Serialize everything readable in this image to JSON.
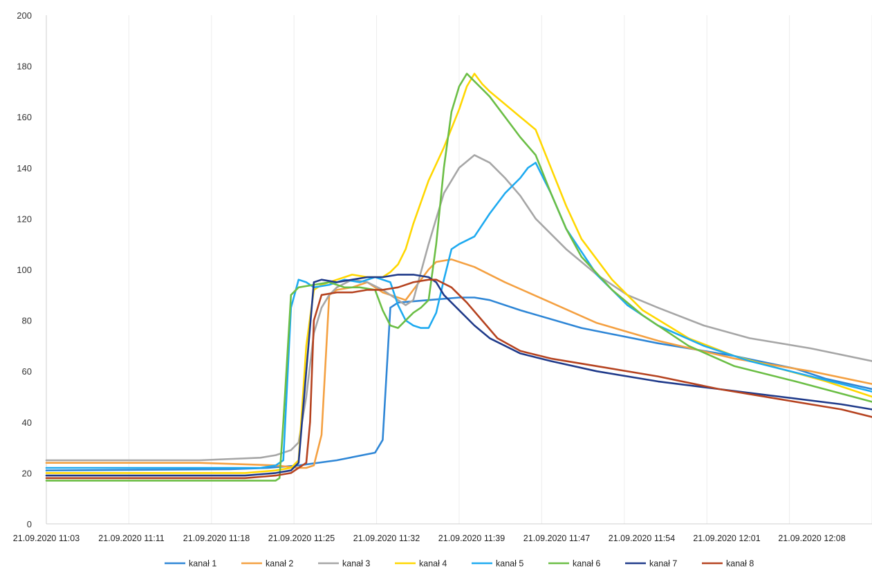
{
  "chart_data": {
    "type": "line",
    "ylim": [
      0,
      200
    ],
    "yticks": [
      "0",
      "20",
      "40",
      "60",
      "80",
      "100",
      "120",
      "140",
      "160",
      "180",
      "200"
    ],
    "xticks": [
      "21.09.2020 11:03",
      "21.09.2020 11:11",
      "21.09.2020 11:18",
      "21.09.2020 11:25",
      "21.09.2020 11:32",
      "21.09.2020 11:39",
      "21.09.2020 11:47",
      "21.09.2020 11:54",
      "21.09.2020 12:01",
      "21.09.2020 12:08"
    ],
    "grid": "vertical",
    "legend_position": "bottom",
    "series": [
      {
        "name": "kanał 1",
        "color": "#2E86D6",
        "points": [
          [
            0,
            21
          ],
          [
            24,
            21.5
          ],
          [
            29,
            22
          ],
          [
            33,
            23
          ],
          [
            38,
            25
          ],
          [
            43,
            28
          ],
          [
            44,
            33
          ],
          [
            45,
            85
          ],
          [
            46,
            87
          ],
          [
            50,
            88
          ],
          [
            54,
            89
          ],
          [
            56,
            89
          ],
          [
            58,
            88
          ],
          [
            62,
            84
          ],
          [
            70,
            77
          ],
          [
            80,
            71
          ],
          [
            90,
            66
          ],
          [
            98,
            61
          ],
          [
            102,
            57
          ],
          [
            108,
            53
          ]
        ]
      },
      {
        "name": "kanał 2",
        "color": "#F4A041",
        "points": [
          [
            0,
            24
          ],
          [
            20,
            24
          ],
          [
            30,
            23
          ],
          [
            33,
            22
          ],
          [
            34,
            22
          ],
          [
            35,
            23
          ],
          [
            36,
            35
          ],
          [
            37,
            90
          ],
          [
            38,
            92
          ],
          [
            40,
            93
          ],
          [
            42,
            95
          ],
          [
            43,
            93
          ],
          [
            44,
            91
          ],
          [
            47,
            88
          ],
          [
            48,
            92
          ],
          [
            50,
            100
          ],
          [
            51,
            103
          ],
          [
            53,
            104
          ],
          [
            56,
            101
          ],
          [
            60,
            95
          ],
          [
            66,
            87
          ],
          [
            72,
            79
          ],
          [
            80,
            72
          ],
          [
            90,
            65
          ],
          [
            100,
            60
          ],
          [
            108,
            55
          ]
        ]
      },
      {
        "name": "kanał 3",
        "color": "#A6A6A6",
        "points": [
          [
            0,
            25
          ],
          [
            20,
            25
          ],
          [
            28,
            26
          ],
          [
            30,
            27
          ],
          [
            32,
            29
          ],
          [
            33,
            32
          ],
          [
            34,
            50
          ],
          [
            35,
            75
          ],
          [
            36,
            85
          ],
          [
            37,
            90
          ],
          [
            38,
            93
          ],
          [
            40,
            96
          ],
          [
            42,
            95
          ],
          [
            44,
            92
          ],
          [
            46,
            88
          ],
          [
            47,
            86
          ],
          [
            48,
            88
          ],
          [
            49,
            99
          ],
          [
            50,
            110
          ],
          [
            51,
            120
          ],
          [
            52,
            130
          ],
          [
            54,
            140
          ],
          [
            56,
            145
          ],
          [
            58,
            142
          ],
          [
            60,
            136
          ],
          [
            62,
            129
          ],
          [
            64,
            120
          ],
          [
            68,
            108
          ],
          [
            72,
            98
          ],
          [
            76,
            90
          ],
          [
            80,
            85
          ],
          [
            86,
            78
          ],
          [
            92,
            73
          ],
          [
            100,
            69
          ],
          [
            108,
            64
          ]
        ]
      },
      {
        "name": "kanał 4",
        "color": "#FFD700",
        "points": [
          [
            0,
            20
          ],
          [
            26,
            20
          ],
          [
            30,
            21
          ],
          [
            32,
            22
          ],
          [
            33,
            25
          ],
          [
            34,
            70
          ],
          [
            35,
            92
          ],
          [
            36,
            94
          ],
          [
            38,
            96
          ],
          [
            40,
            98
          ],
          [
            42,
            97
          ],
          [
            44,
            97
          ],
          [
            45,
            99
          ],
          [
            46,
            102
          ],
          [
            47,
            108
          ],
          [
            48,
            118
          ],
          [
            50,
            135
          ],
          [
            52,
            148
          ],
          [
            54,
            163
          ],
          [
            55,
            172
          ],
          [
            56,
            177
          ],
          [
            57,
            173
          ],
          [
            58,
            170
          ],
          [
            60,
            165
          ],
          [
            62,
            160
          ],
          [
            64,
            155
          ],
          [
            66,
            140
          ],
          [
            68,
            125
          ],
          [
            70,
            112
          ],
          [
            74,
            96
          ],
          [
            78,
            84
          ],
          [
            84,
            73
          ],
          [
            90,
            66
          ],
          [
            96,
            61
          ],
          [
            102,
            56
          ],
          [
            108,
            50
          ]
        ]
      },
      {
        "name": "kanał 5",
        "color": "#1EAAF0",
        "points": [
          [
            0,
            22
          ],
          [
            24,
            22
          ],
          [
            28,
            22
          ],
          [
            30,
            23
          ],
          [
            31,
            25
          ],
          [
            32,
            85
          ],
          [
            33,
            96
          ],
          [
            34,
            95
          ],
          [
            35,
            93
          ],
          [
            37,
            94
          ],
          [
            39,
            96
          ],
          [
            41,
            95
          ],
          [
            43,
            97
          ],
          [
            45,
            95
          ],
          [
            46,
            86
          ],
          [
            47,
            80
          ],
          [
            48,
            78
          ],
          [
            49,
            77
          ],
          [
            50,
            77
          ],
          [
            51,
            83
          ],
          [
            52,
            96
          ],
          [
            53,
            108
          ],
          [
            54,
            110
          ],
          [
            56,
            113
          ],
          [
            58,
            122
          ],
          [
            60,
            130
          ],
          [
            62,
            136
          ],
          [
            63,
            140
          ],
          [
            64,
            142
          ],
          [
            65,
            136
          ],
          [
            66,
            130
          ],
          [
            68,
            116
          ],
          [
            72,
            98
          ],
          [
            76,
            86
          ],
          [
            80,
            78
          ],
          [
            86,
            70
          ],
          [
            92,
            64
          ],
          [
            100,
            58
          ],
          [
            108,
            52
          ]
        ]
      },
      {
        "name": "kanał 6",
        "color": "#6BBE45",
        "points": [
          [
            0,
            17
          ],
          [
            24,
            17
          ],
          [
            30,
            17
          ],
          [
            30.5,
            18
          ],
          [
            31,
            40
          ],
          [
            32,
            90
          ],
          [
            33,
            93
          ],
          [
            35,
            94
          ],
          [
            37,
            95
          ],
          [
            39,
            93
          ],
          [
            41,
            93
          ],
          [
            43,
            92
          ],
          [
            44,
            84
          ],
          [
            45,
            78
          ],
          [
            46,
            77
          ],
          [
            47,
            80
          ],
          [
            48,
            83
          ],
          [
            49,
            85
          ],
          [
            50,
            88
          ],
          [
            51,
            110
          ],
          [
            52,
            140
          ],
          [
            53,
            162
          ],
          [
            54,
            172
          ],
          [
            55,
            177
          ],
          [
            56,
            174
          ],
          [
            57,
            171
          ],
          [
            58,
            168
          ],
          [
            60,
            160
          ],
          [
            62,
            152
          ],
          [
            64,
            145
          ],
          [
            66,
            130
          ],
          [
            68,
            116
          ],
          [
            70,
            105
          ],
          [
            74,
            92
          ],
          [
            78,
            82
          ],
          [
            84,
            70
          ],
          [
            90,
            62
          ],
          [
            98,
            56
          ],
          [
            108,
            48
          ]
        ]
      },
      {
        "name": "kanał 7",
        "color": "#1F3A8A",
        "points": [
          [
            0,
            19
          ],
          [
            26,
            19
          ],
          [
            30,
            20
          ],
          [
            32,
            21
          ],
          [
            33,
            24
          ],
          [
            34,
            60
          ],
          [
            35,
            95
          ],
          [
            36,
            96
          ],
          [
            38,
            95
          ],
          [
            40,
            96
          ],
          [
            42,
            97
          ],
          [
            44,
            97
          ],
          [
            46,
            98
          ],
          [
            48,
            98
          ],
          [
            50,
            97
          ],
          [
            51,
            95
          ],
          [
            52,
            90
          ],
          [
            54,
            84
          ],
          [
            56,
            78
          ],
          [
            58,
            73
          ],
          [
            62,
            67
          ],
          [
            66,
            64
          ],
          [
            72,
            60
          ],
          [
            80,
            56
          ],
          [
            88,
            53
          ],
          [
            96,
            50
          ],
          [
            104,
            47
          ],
          [
            108,
            45
          ]
        ]
      },
      {
        "name": "kanał 8",
        "color": "#B5421F",
        "points": [
          [
            0,
            18
          ],
          [
            26,
            18
          ],
          [
            30,
            19
          ],
          [
            32,
            20
          ],
          [
            33,
            22
          ],
          [
            34,
            24
          ],
          [
            34.5,
            40
          ],
          [
            35,
            80
          ],
          [
            36,
            90
          ],
          [
            38,
            91
          ],
          [
            40,
            91
          ],
          [
            42,
            92
          ],
          [
            44,
            92
          ],
          [
            46,
            93
          ],
          [
            48,
            95
          ],
          [
            50,
            96
          ],
          [
            51,
            96
          ],
          [
            53,
            93
          ],
          [
            55,
            87
          ],
          [
            57,
            80
          ],
          [
            59,
            73
          ],
          [
            62,
            68
          ],
          [
            66,
            65
          ],
          [
            72,
            62
          ],
          [
            80,
            58
          ],
          [
            88,
            53
          ],
          [
            96,
            49
          ],
          [
            104,
            45
          ],
          [
            108,
            42
          ]
        ]
      }
    ]
  }
}
